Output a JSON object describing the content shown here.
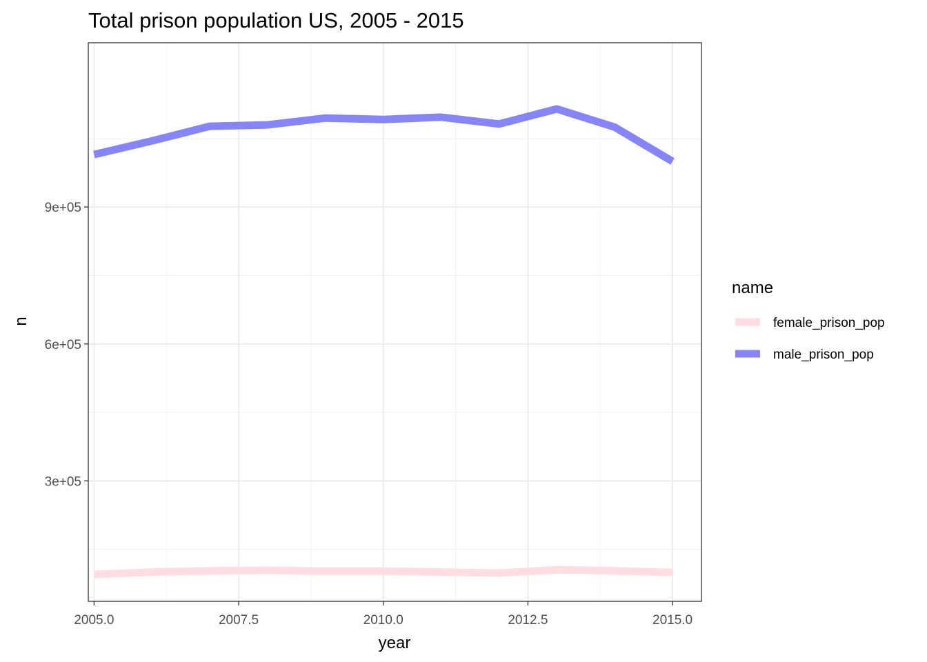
{
  "chart_data": {
    "type": "line",
    "title": "Total prison population US, 2005 - 2015",
    "xlabel": "year",
    "ylabel": "n",
    "x": [
      2005,
      2006,
      2007,
      2008,
      2009,
      2010,
      2011,
      2012,
      2013,
      2014,
      2015
    ],
    "xlim": [
      2004.9,
      2015.5
    ],
    "ylim": [
      36000,
      1260000
    ],
    "x_ticks": [
      2005.0,
      2007.5,
      2010.0,
      2012.5,
      2015.0
    ],
    "x_tick_labels": [
      "2005.0",
      "2007.5",
      "2010.0",
      "2012.5",
      "2015.0"
    ],
    "y_ticks": [
      300000,
      600000,
      900000
    ],
    "y_tick_labels": [
      "3e+05",
      "6e+05",
      "9e+05"
    ],
    "y_minor_ticks": [
      150000,
      450000,
      750000,
      1050000
    ],
    "x_minor_ticks": [
      2006.25,
      2008.75,
      2011.25,
      2013.75
    ],
    "grid": true,
    "legend": {
      "title": "name",
      "position": "right"
    },
    "series": [
      {
        "name": "female_prison_pop",
        "color": "#ffdde3",
        "values": [
          95000,
          100000,
          103000,
          104000,
          102000,
          102000,
          100000,
          98000,
          105000,
          103000,
          99000
        ]
      },
      {
        "name": "male_prison_pop",
        "color": "#8585f8",
        "values": [
          1015000,
          1045000,
          1077000,
          1080000,
          1095000,
          1092000,
          1097000,
          1082000,
          1115000,
          1075000,
          1000000
        ]
      }
    ]
  }
}
